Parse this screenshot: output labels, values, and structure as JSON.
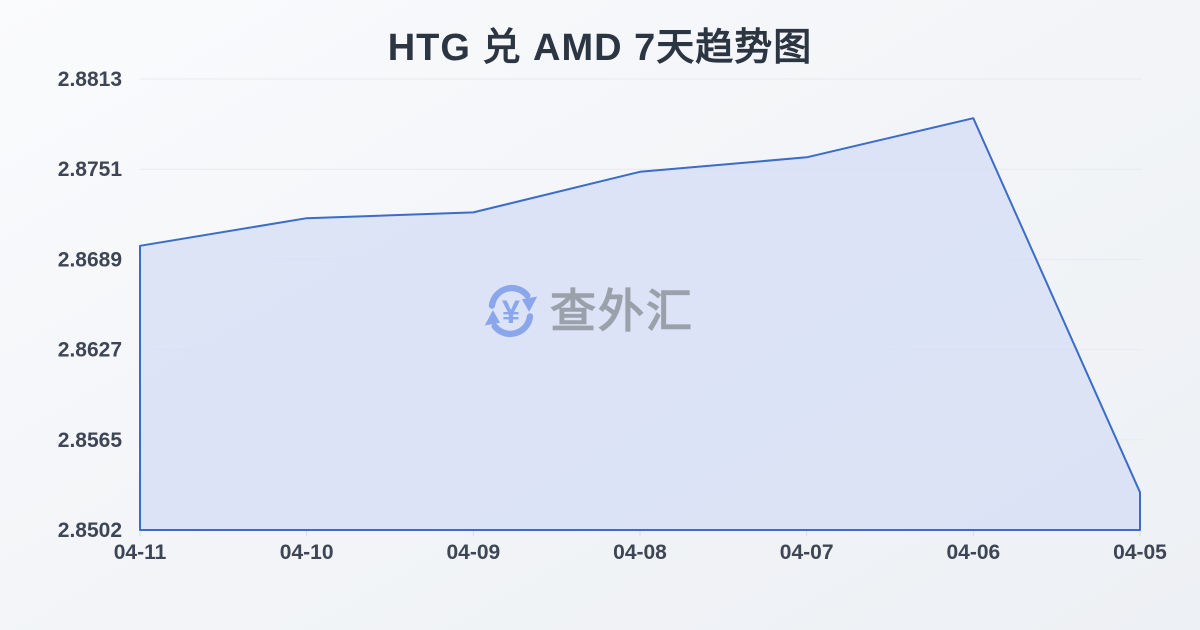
{
  "title": "HTG 兑 AMD 7天趋势图",
  "watermark": {
    "text": "查外汇",
    "icon": "currency-exchange-yen-icon"
  },
  "colors": {
    "title_text": "#2c3542",
    "axis_label_text": "#3e4655",
    "gridline": "#e7eaee",
    "tick": "#d8dce2",
    "line": "#3a6cc8",
    "area_fill": "rgba(214,223,245,0.8)",
    "watermark_text": "#9aa1ab",
    "watermark_icon": "#8ba7eb",
    "background_top": "#fafbfd",
    "background_bottom": "#edf0f4"
  },
  "chart_data": {
    "type": "area",
    "title": "HTG 兑 AMD 7天趋势图",
    "categories": [
      "04-11",
      "04-10",
      "04-09",
      "04-08",
      "04-07",
      "04-06",
      "04-05"
    ],
    "values": [
      2.8698,
      2.8717,
      2.8721,
      2.8749,
      2.8759,
      2.8786,
      2.8528
    ],
    "y_ticks": [
      "2.8813",
      "2.8751",
      "2.8689",
      "2.8627",
      "2.8565",
      "2.8502"
    ],
    "ylim": [
      2.8502,
      2.8813
    ],
    "xlabel": "",
    "ylabel": "",
    "grid": true,
    "legend": false
  }
}
